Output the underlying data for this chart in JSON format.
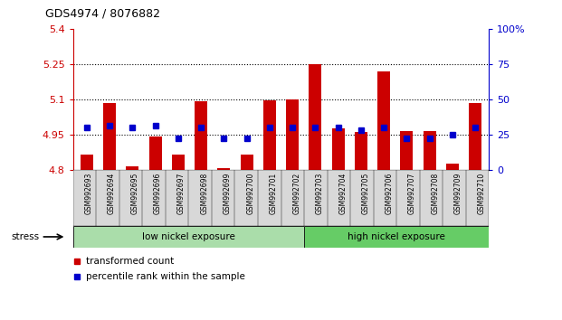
{
  "title": "GDS4974 / 8076882",
  "samples": [
    "GSM992693",
    "GSM992694",
    "GSM992695",
    "GSM992696",
    "GSM992697",
    "GSM992698",
    "GSM992699",
    "GSM992700",
    "GSM992701",
    "GSM992702",
    "GSM992703",
    "GSM992704",
    "GSM992705",
    "GSM992706",
    "GSM992707",
    "GSM992708",
    "GSM992709",
    "GSM992710"
  ],
  "red_values": [
    4.865,
    5.085,
    4.815,
    4.94,
    4.865,
    5.09,
    4.805,
    4.865,
    5.095,
    5.1,
    5.25,
    4.975,
    4.96,
    5.22,
    4.965,
    4.965,
    4.825,
    5.085
  ],
  "blue_values": [
    30,
    31,
    30,
    31,
    22,
    30,
    22,
    22,
    30,
    30,
    30,
    30,
    28,
    30,
    22,
    22,
    25,
    30
  ],
  "ymin": 4.8,
  "ymax": 5.4,
  "yticks": [
    4.8,
    4.95,
    5.1,
    5.25,
    5.4
  ],
  "ytick_labels": [
    "4.8",
    "4.95",
    "5.1",
    "5.25",
    "5.4"
  ],
  "y2min": 0,
  "y2max": 100,
  "y2ticks": [
    0,
    25,
    50,
    75,
    100
  ],
  "y2tick_labels": [
    "0",
    "25",
    "50",
    "75",
    "100%"
  ],
  "dotted_lines": [
    4.95,
    5.1,
    5.25
  ],
  "group1_label": "low nickel exposure",
  "group2_label": "high nickel exposure",
  "group1_count": 10,
  "group2_count": 8,
  "stress_label": "stress",
  "legend_red": "transformed count",
  "legend_blue": "percentile rank within the sample",
  "red_color": "#cc0000",
  "blue_color": "#0000cc",
  "bar_width": 0.55,
  "group1_color": "#aaddaa",
  "group2_color": "#66cc66",
  "axis_color_left": "#cc0000",
  "axis_color_right": "#0000cc"
}
